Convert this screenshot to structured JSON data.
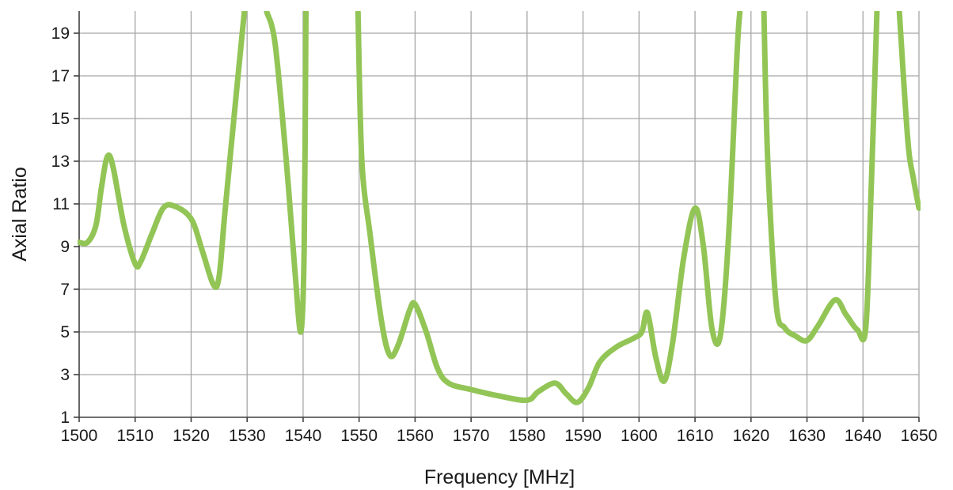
{
  "chart_data": {
    "type": "line",
    "title": "",
    "xlabel": "Frequency [MHz]",
    "ylabel": "Axial Ratio",
    "xlim": [
      1500,
      1650
    ],
    "ylim": [
      1,
      20
    ],
    "x_ticks": [
      1500,
      1510,
      1520,
      1530,
      1540,
      1550,
      1560,
      1570,
      1580,
      1590,
      1600,
      1610,
      1620,
      1630,
      1640,
      1650
    ],
    "y_ticks": [
      1,
      3,
      5,
      7,
      9,
      11,
      13,
      15,
      17,
      19
    ],
    "grid": true,
    "legend": "none",
    "series": [
      {
        "color": "#92c556",
        "segments": [
          [
            [
              1500,
              9.2
            ],
            [
              1501.5,
              9.2
            ],
            [
              1503,
              10.0
            ],
            [
              1504,
              11.8
            ],
            [
              1505,
              13.2
            ],
            [
              1506,
              12.8
            ],
            [
              1508,
              10.0
            ],
            [
              1510,
              8.2
            ],
            [
              1511,
              8.3
            ],
            [
              1513,
              9.6
            ],
            [
              1515,
              10.8
            ],
            [
              1517,
              10.9
            ],
            [
              1520,
              10.3
            ],
            [
              1522,
              8.8
            ],
            [
              1524,
              7.2
            ],
            [
              1525,
              7.6
            ],
            [
              1526,
              10.5
            ],
            [
              1528,
              16.0
            ],
            [
              1529.5,
              20.0
            ]
          ],
          [
            [
              1533.5,
              20.0
            ],
            [
              1535,
              18.5
            ],
            [
              1537,
              13.0
            ],
            [
              1538.5,
              8.0
            ],
            [
              1539.6,
              5.0
            ],
            [
              1540.2,
              9.0
            ],
            [
              1540.5,
              20.0
            ]
          ],
          [
            [
              1549.8,
              20.0
            ],
            [
              1550.5,
              13.0
            ],
            [
              1552,
              9.5
            ],
            [
              1554,
              5.5
            ],
            [
              1555.5,
              3.9
            ],
            [
              1557,
              4.4
            ],
            [
              1559,
              6.0
            ],
            [
              1560,
              6.3
            ],
            [
              1562,
              5.0
            ],
            [
              1564,
              3.3
            ],
            [
              1566,
              2.6
            ],
            [
              1570,
              2.3
            ],
            [
              1575,
              2.0
            ],
            [
              1580,
              1.8
            ],
            [
              1582,
              2.2
            ],
            [
              1585,
              2.6
            ],
            [
              1587,
              2.1
            ],
            [
              1589,
              1.7
            ],
            [
              1591,
              2.4
            ],
            [
              1593,
              3.6
            ],
            [
              1596,
              4.3
            ],
            [
              1599,
              4.7
            ],
            [
              1600.5,
              5.0
            ],
            [
              1601.5,
              5.9
            ],
            [
              1603,
              3.8
            ],
            [
              1604.5,
              2.7
            ],
            [
              1606,
              4.5
            ],
            [
              1608,
              8.5
            ],
            [
              1610,
              10.8
            ],
            [
              1611.5,
              9.0
            ],
            [
              1613,
              5.2
            ],
            [
              1614.5,
              4.8
            ],
            [
              1616,
              9.5
            ],
            [
              1617.5,
              18.0
            ],
            [
              1618,
              20.0
            ]
          ],
          [
            [
              1622.3,
              20.0
            ],
            [
              1623,
              13.0
            ],
            [
              1624.5,
              6.3
            ],
            [
              1626,
              5.2
            ],
            [
              1628,
              4.8
            ],
            [
              1630,
              4.6
            ],
            [
              1632,
              5.3
            ],
            [
              1635,
              6.5
            ],
            [
              1637,
              5.8
            ],
            [
              1639,
              5.1
            ],
            [
              1640.5,
              5.2
            ],
            [
              1641.5,
              12.0
            ],
            [
              1642.5,
              20.0
            ]
          ],
          [
            [
              1646.5,
              20.0
            ],
            [
              1648,
              14.0
            ],
            [
              1649,
              12.2
            ],
            [
              1650,
              10.8
            ]
          ]
        ]
      }
    ]
  }
}
